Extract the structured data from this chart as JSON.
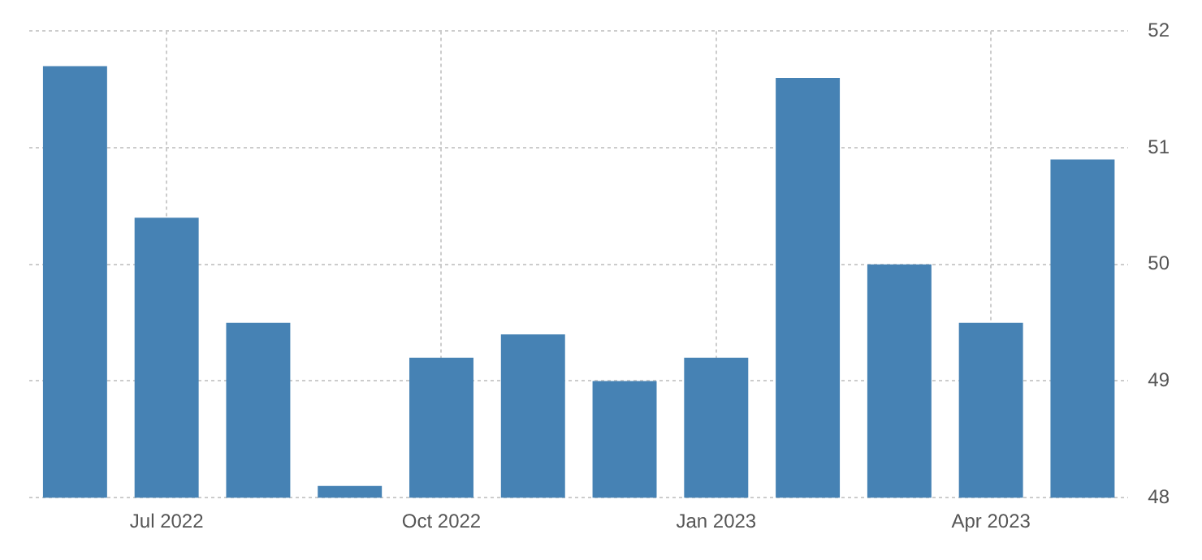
{
  "chart_data": {
    "type": "bar",
    "categories": [
      null,
      "Jul 2022",
      null,
      null,
      "Oct 2022",
      null,
      null,
      "Jan 2023",
      null,
      null,
      "Apr 2023",
      null
    ],
    "values": [
      51.7,
      50.4,
      49.5,
      48.1,
      49.2,
      49.4,
      49.0,
      49.2,
      51.6,
      50.0,
      49.5,
      50.9
    ],
    "color": "#4682b4",
    "ylim": [
      48,
      52
    ],
    "yticks": [
      48,
      49,
      50,
      51,
      52
    ],
    "grid": true
  }
}
